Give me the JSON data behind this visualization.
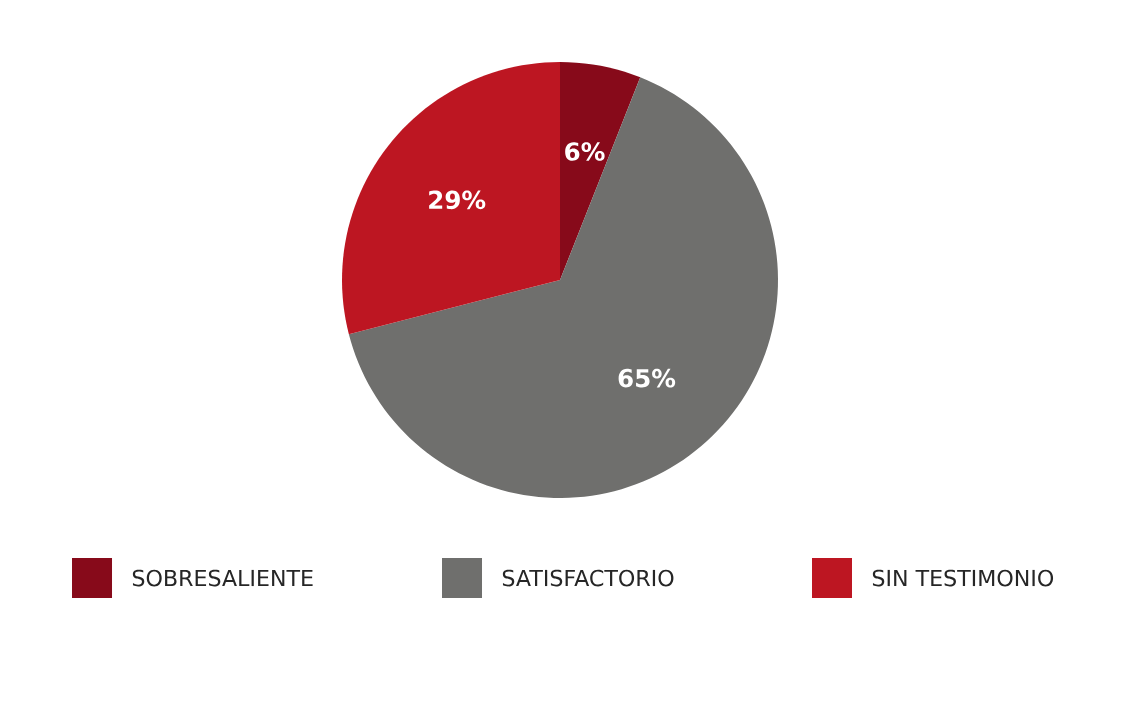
{
  "chart_data": {
    "type": "pie",
    "categories": [
      "SOBRESALIENTE",
      "SATISFACTORIO",
      "SIN TESTIMONIO"
    ],
    "values": [
      6,
      65,
      29
    ],
    "colors": [
      "#870a1a",
      "#6f6f6d",
      "#bd1622"
    ],
    "value_labels": [
      "6%",
      "65%",
      "29%"
    ],
    "legend": "bottom"
  }
}
